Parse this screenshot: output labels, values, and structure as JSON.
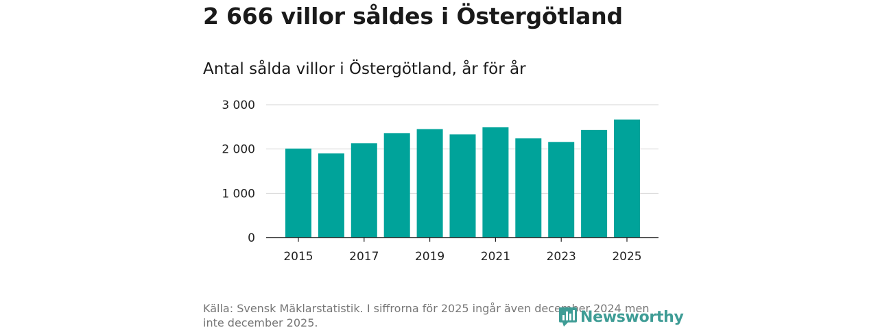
{
  "title": "2 666 villor såldes i Östergötland",
  "subtitle": "Antal sålda villor i Östergötland, år för år",
  "source": "Källa: Svensk Mäklarstatistik. I siffrorna för 2025 ingår även december 2024 men inte december 2025.",
  "brand": {
    "name": "Newsworthy",
    "color": "#3e9c95"
  },
  "chart_data": {
    "type": "bar",
    "categories": [
      "2015",
      "2016",
      "2017",
      "2018",
      "2019",
      "2020",
      "2021",
      "2022",
      "2023",
      "2024",
      "2025"
    ],
    "values": [
      2010,
      1900,
      2130,
      2360,
      2450,
      2330,
      2490,
      2240,
      2160,
      2430,
      2666
    ],
    "ylim": [
      0,
      3000
    ],
    "y_ticks": [
      0,
      1000,
      2000,
      3000
    ],
    "y_tick_labels": [
      "0",
      "1 000",
      "2 000",
      "3 000"
    ],
    "x_tick_labels": [
      "2015",
      "2017",
      "2019",
      "2021",
      "2023",
      "2025"
    ],
    "bar_color": "#00a39a",
    "grid": true
  }
}
